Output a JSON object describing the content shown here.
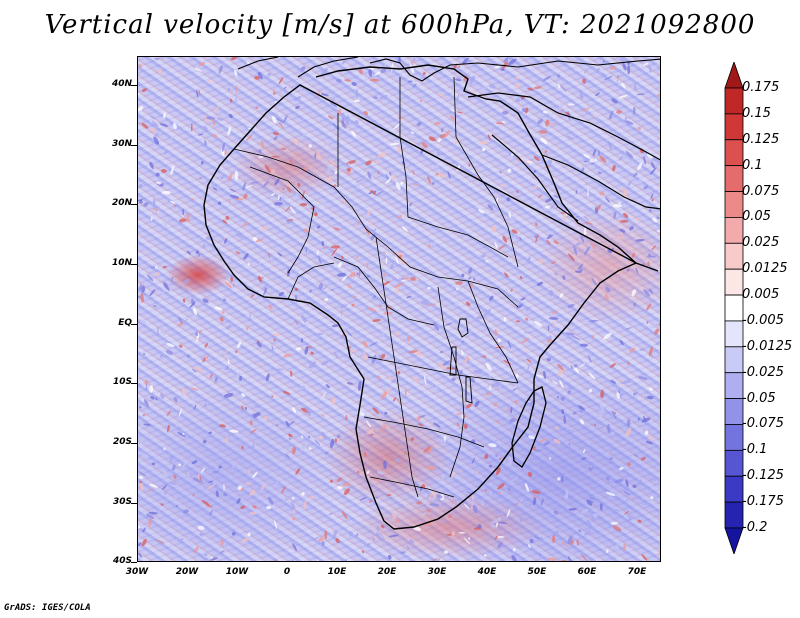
{
  "title": "Vertical velocity [m/s] at 600hPa, VT: 2021092800",
  "credit": "GrADS: IGES/COLA",
  "map": {
    "variable": "Vertical velocity",
    "units": "m/s",
    "level": "600hPa",
    "valid_time": "2021092800",
    "lat_labels": [
      "40N",
      "30N",
      "20N",
      "10N",
      "EQ",
      "10S",
      "20S",
      "30S",
      "40S"
    ],
    "lon_labels": [
      "30W",
      "20W",
      "10W",
      "0",
      "10E",
      "20E",
      "30E",
      "40E",
      "50E",
      "60E",
      "70E"
    ],
    "lat_range": [
      -40,
      45
    ],
    "lon_range": [
      -30,
      75
    ]
  },
  "colorbar": {
    "levels": [
      "0.175",
      "0.15",
      "0.125",
      "0.1",
      "0.075",
      "0.05",
      "0.025",
      "0.0125",
      "0.005",
      "-0.005",
      "-0.0125",
      "-0.025",
      "-0.05",
      "-0.075",
      "-0.1",
      "-0.125",
      "-0.175",
      "-0.2"
    ],
    "colors": [
      "#a01818",
      "#c02828",
      "#d03838",
      "#dc5050",
      "#e46c6c",
      "#ec8a8a",
      "#f2aaaa",
      "#f8caca",
      "#fce6e6",
      "#ffffff",
      "#e4e4fc",
      "#cacaf6",
      "#aeaef0",
      "#9292e8",
      "#7474de",
      "#5656d2",
      "#3a3ac4",
      "#2424b0",
      "#1414a0"
    ]
  }
}
